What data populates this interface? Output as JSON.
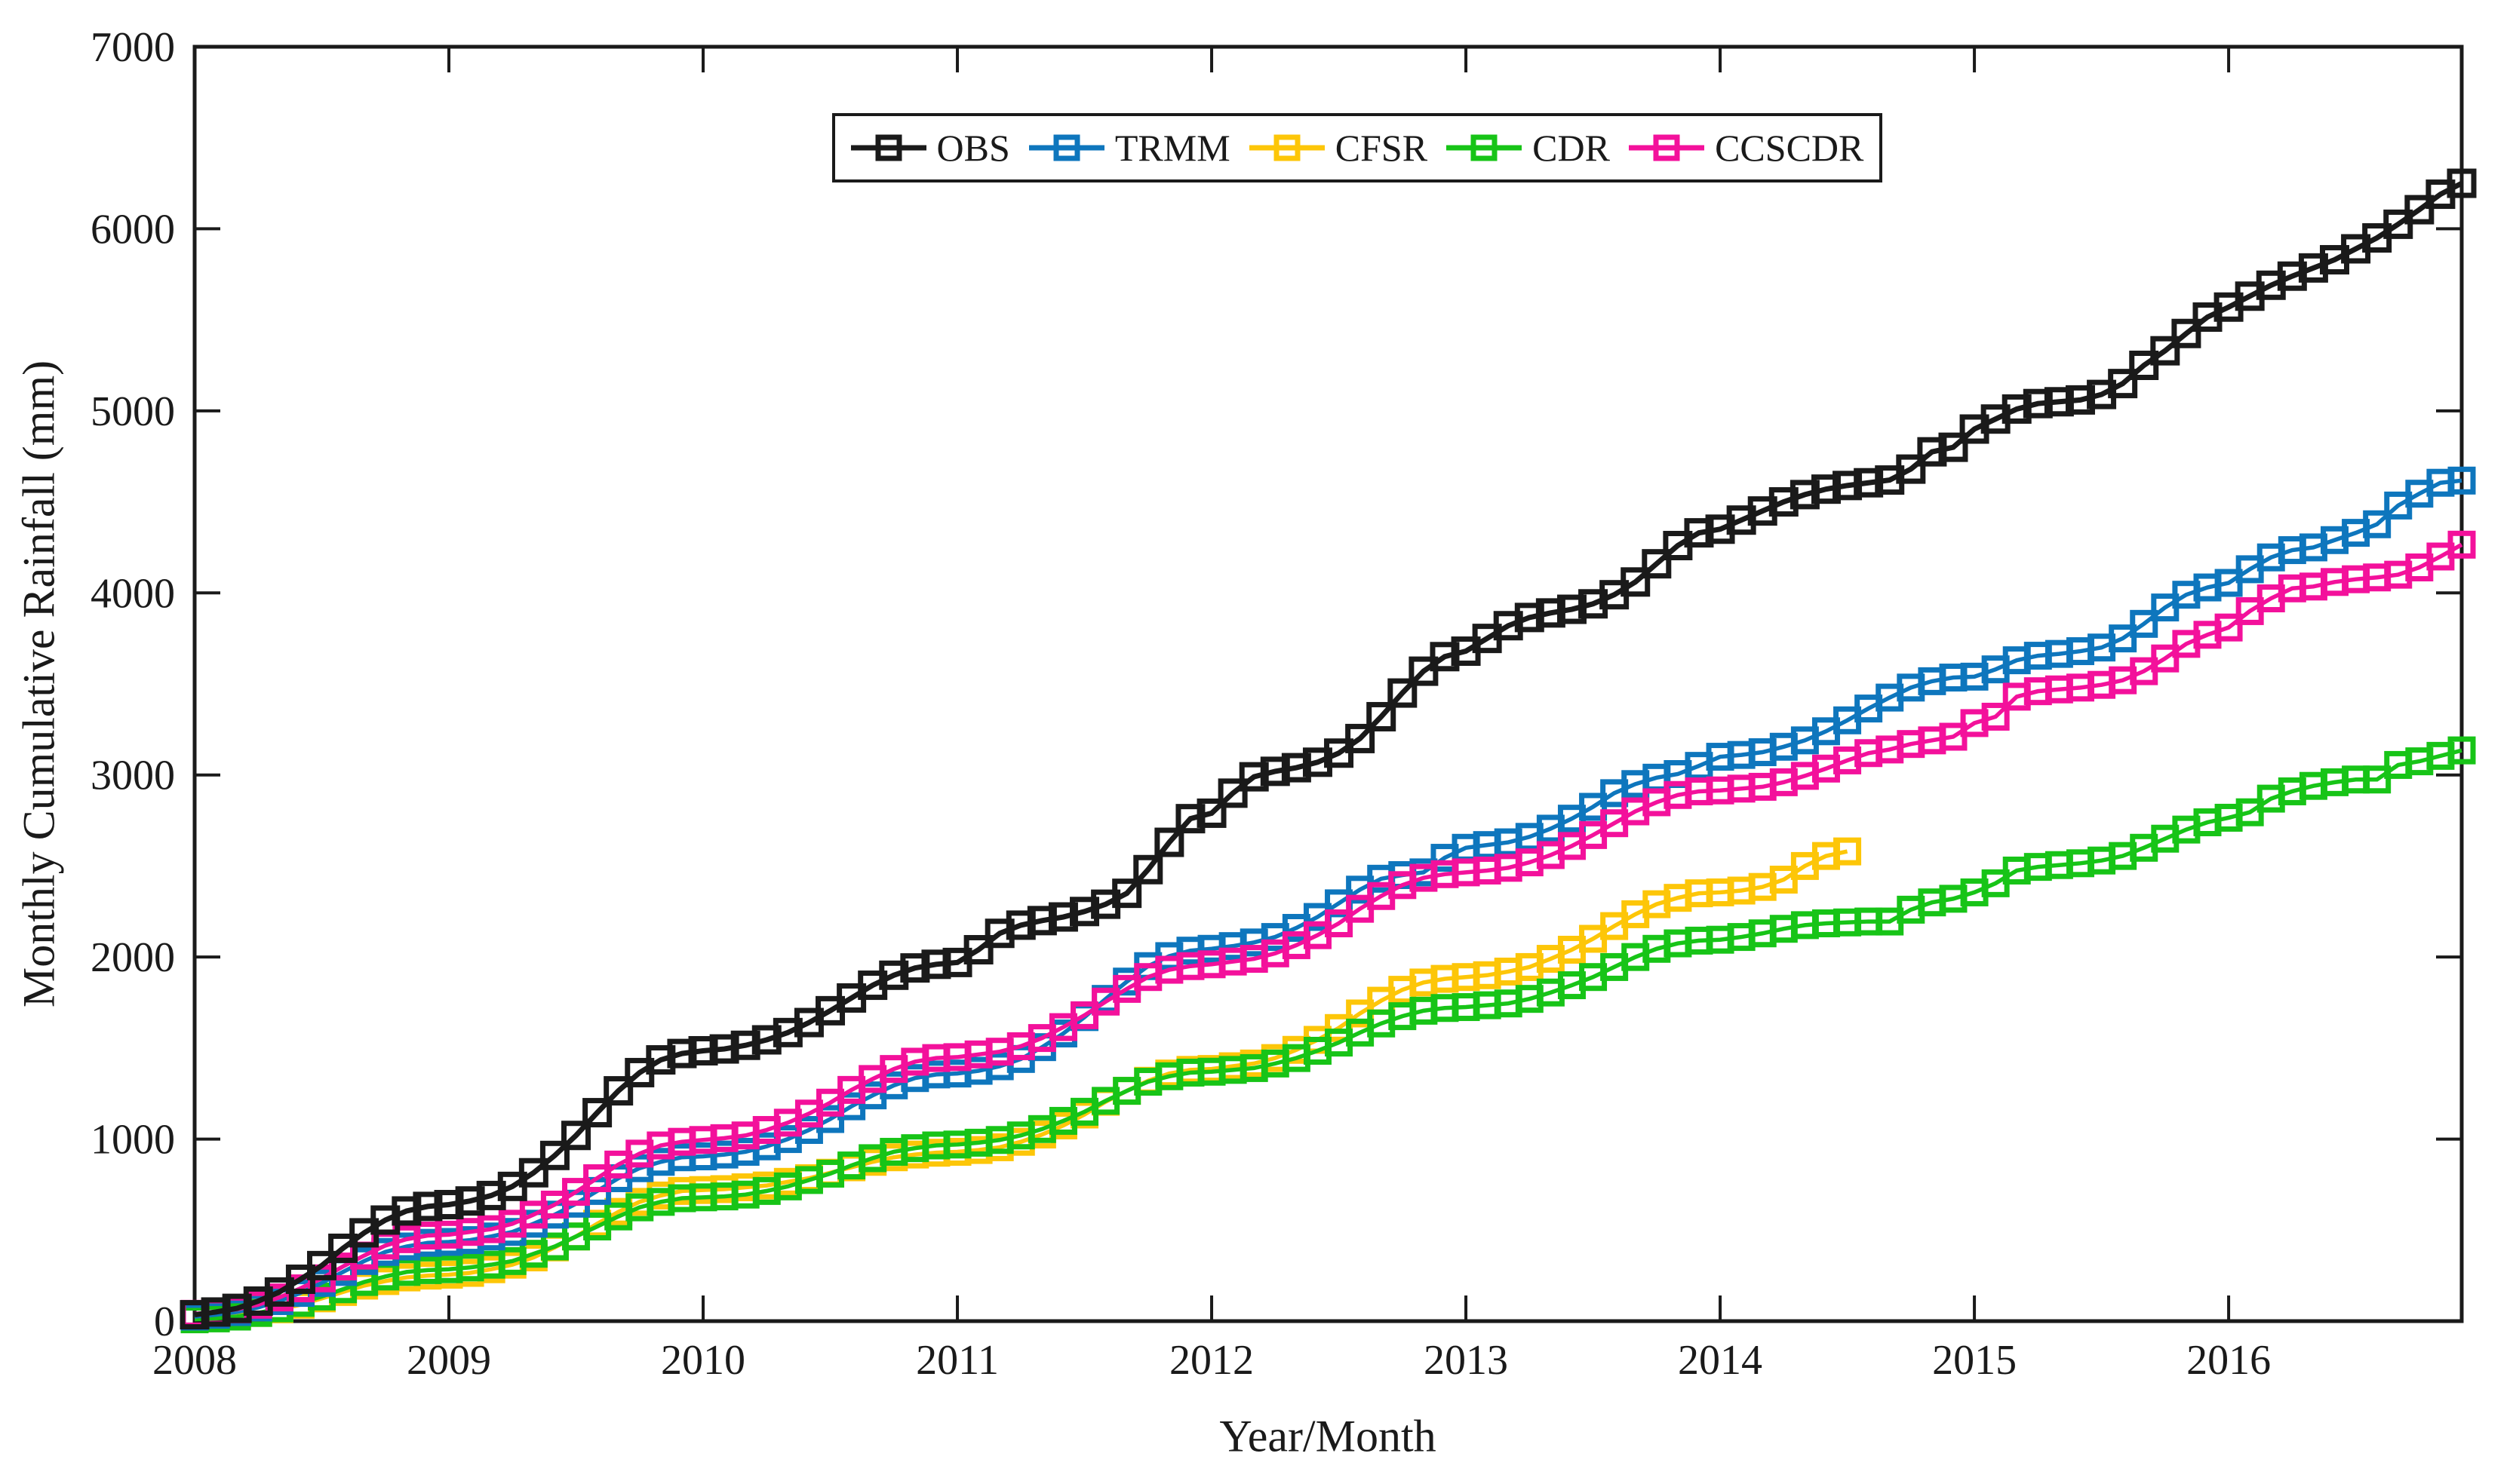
{
  "chart_data": {
    "type": "line",
    "title": "",
    "xlabel": "Year/Month",
    "ylabel": "Monthly Cumulative Rainfall (mm)",
    "grid": false,
    "legend_position": "top-center",
    "marker_style": "open-square",
    "ylim": [
      0,
      7000
    ],
    "y_tick_labels": [
      "0",
      "1000",
      "2000",
      "3000",
      "4000",
      "5000",
      "6000",
      "7000"
    ],
    "x_tick_labels": [
      "2008",
      "2009",
      "2010",
      "2011",
      "2012",
      "2013",
      "2014",
      "2015",
      "2016"
    ],
    "x_months_total": 108,
    "x_start": "2008-01",
    "x_end": "2016-12",
    "series": [
      {
        "name": "OBS",
        "color": "#1a1a1a",
        "values": [
          35,
          50,
          70,
          110,
          160,
          230,
          305,
          400,
          485,
          555,
          605,
          630,
          640,
          660,
          690,
          740,
          815,
          910,
          1020,
          1145,
          1265,
          1365,
          1435,
          1470,
          1485,
          1495,
          1515,
          1545,
          1585,
          1640,
          1705,
          1775,
          1845,
          1900,
          1940,
          1960,
          1970,
          2040,
          2130,
          2175,
          2200,
          2220,
          2250,
          2290,
          2350,
          2480,
          2630,
          2760,
          2790,
          2900,
          2990,
          3020,
          3040,
          3070,
          3120,
          3200,
          3320,
          3450,
          3570,
          3650,
          3680,
          3750,
          3820,
          3865,
          3890,
          3910,
          3940,
          3990,
          4060,
          4160,
          4260,
          4330,
          4350,
          4400,
          4450,
          4500,
          4540,
          4570,
          4590,
          4605,
          4620,
          4680,
          4775,
          4800,
          4900,
          4955,
          5010,
          5040,
          5050,
          5060,
          5090,
          5150,
          5250,
          5330,
          5425,
          5515,
          5570,
          5630,
          5690,
          5740,
          5785,
          5830,
          5890,
          5950,
          6025,
          6105,
          6190,
          6250
        ]
      },
      {
        "name": "TRMM",
        "color": "#0e76bd",
        "values": [
          25,
          35,
          50,
          75,
          110,
          155,
          210,
          270,
          330,
          380,
          410,
          430,
          435,
          445,
          465,
          490,
          535,
          585,
          645,
          715,
          785,
          840,
          875,
          900,
          905,
          915,
          930,
          960,
          1000,
          1050,
          1110,
          1180,
          1240,
          1295,
          1335,
          1355,
          1360,
          1375,
          1400,
          1440,
          1505,
          1580,
          1670,
          1770,
          1865,
          1950,
          2005,
          2035,
          2045,
          2060,
          2080,
          2110,
          2160,
          2220,
          2295,
          2370,
          2430,
          2450,
          2465,
          2545,
          2600,
          2615,
          2630,
          2660,
          2705,
          2760,
          2825,
          2900,
          2950,
          2985,
          3005,
          3050,
          3100,
          3110,
          3125,
          3155,
          3190,
          3240,
          3300,
          3365,
          3425,
          3480,
          3515,
          3535,
          3540,
          3580,
          3630,
          3655,
          3665,
          3680,
          3700,
          3750,
          3830,
          3920,
          3990,
          4030,
          4055,
          4130,
          4195,
          4235,
          4250,
          4290,
          4330,
          4377,
          4480,
          4545,
          4605,
          4617
        ]
      },
      {
        "name": "CFSR",
        "color": "#fdc608",
        "values": [
          15,
          20,
          30,
          45,
          65,
          90,
          125,
          160,
          195,
          220,
          240,
          250,
          255,
          265,
          285,
          310,
          350,
          405,
          465,
          535,
          600,
          655,
          690,
          715,
          720,
          725,
          735,
          745,
          765,
          785,
          815,
          845,
          875,
          900,
          915,
          925,
          930,
          940,
          955,
          985,
          1025,
          1075,
          1135,
          1205,
          1265,
          1320,
          1360,
          1380,
          1385,
          1400,
          1415,
          1445,
          1490,
          1545,
          1610,
          1690,
          1760,
          1820,
          1860,
          1880,
          1890,
          1900,
          1920,
          1945,
          1990,
          2040,
          2100,
          2170,
          2235,
          2290,
          2325,
          2350,
          2355,
          2365,
          2385,
          2425,
          2500,
          2555,
          2580
        ]
      },
      {
        "name": "CDR",
        "color": "#17c417",
        "values": [
          10,
          15,
          25,
          45,
          70,
          100,
          135,
          175,
          215,
          245,
          270,
          280,
          285,
          295,
          310,
          330,
          370,
          410,
          465,
          520,
          575,
          625,
          655,
          675,
          680,
          685,
          695,
          715,
          740,
          775,
          810,
          855,
          895,
          930,
          950,
          965,
          970,
          980,
          995,
          1020,
          1055,
          1100,
          1150,
          1210,
          1265,
          1315,
          1345,
          1365,
          1370,
          1380,
          1390,
          1415,
          1445,
          1485,
          1530,
          1585,
          1635,
          1675,
          1705,
          1720,
          1725,
          1735,
          1745,
          1770,
          1805,
          1845,
          1890,
          1945,
          2000,
          2045,
          2075,
          2090,
          2095,
          2110,
          2130,
          2155,
          2175,
          2185,
          2190,
          2195,
          2195,
          2260,
          2300,
          2320,
          2355,
          2405,
          2475,
          2495,
          2505,
          2515,
          2530,
          2555,
          2600,
          2650,
          2700,
          2740,
          2765,
          2795,
          2870,
          2910,
          2940,
          2960,
          2975,
          2975,
          3055,
          3075,
          3105,
          3135
        ]
      },
      {
        "name": "CCSCDR",
        "color": "#f3119b",
        "values": [
          40,
          50,
          65,
          90,
          130,
          180,
          235,
          300,
          360,
          415,
          450,
          470,
          475,
          490,
          505,
          535,
          585,
          640,
          710,
          785,
          860,
          920,
          965,
          985,
          995,
          1005,
          1020,
          1050,
          1090,
          1140,
          1200,
          1270,
          1330,
          1385,
          1425,
          1445,
          1450,
          1465,
          1480,
          1510,
          1555,
          1615,
          1680,
          1755,
          1825,
          1890,
          1930,
          1950,
          1960,
          1975,
          1990,
          2020,
          2065,
          2120,
          2185,
          2265,
          2335,
          2395,
          2435,
          2455,
          2465,
          2475,
          2490,
          2520,
          2560,
          2610,
          2670,
          2735,
          2800,
          2850,
          2890,
          2910,
          2915,
          2925,
          2935,
          2960,
          2995,
          3035,
          3080,
          3120,
          3140,
          3170,
          3190,
          3210,
          3285,
          3320,
          3430,
          3460,
          3470,
          3480,
          3495,
          3520,
          3570,
          3640,
          3720,
          3770,
          3810,
          3900,
          3970,
          4025,
          4035,
          4060,
          4075,
          4085,
          4100,
          4140,
          4200,
          4265
        ]
      }
    ]
  }
}
